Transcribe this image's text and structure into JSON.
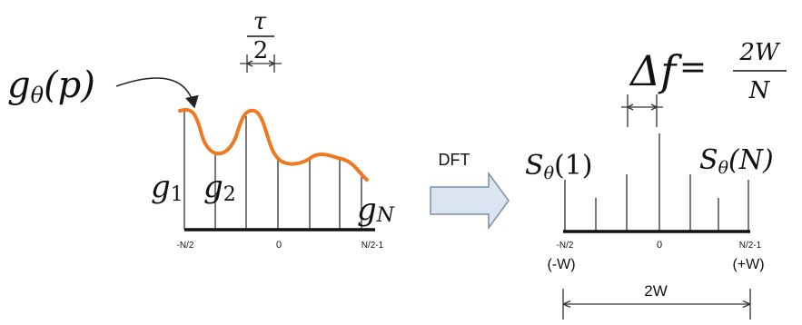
{
  "left_panel": {
    "function_label_main": "g",
    "function_label_sub": "θ",
    "function_label_arg": "(p)",
    "sample_first_main": "g",
    "sample_first_sub": "1",
    "sample_second_main": "g",
    "sample_second_sub": "2",
    "sample_last_main": "g",
    "sample_last_sub": "N",
    "spacing_numerator": "τ",
    "spacing_denominator": "2",
    "axis_left": "-N/2",
    "axis_zero": "0",
    "axis_right": "N/2-1",
    "curve_color": "#f07820"
  },
  "arrow": {
    "label": "DFT",
    "fill_color": "#dbe5f1",
    "stroke_color": "#7d8ea8"
  },
  "right_panel": {
    "delta_label": "Δf",
    "equals": "=",
    "delta_numerator": "2W",
    "delta_denominator": "N",
    "spectrum_first_main": "S",
    "spectrum_first_sub": "θ",
    "spectrum_first_arg": "(1)",
    "spectrum_last_main": "S",
    "spectrum_last_sub": "θ",
    "spectrum_last_arg": "(N)",
    "axis_left": "-N/2",
    "axis_zero": "0",
    "axis_right": "N/2-1",
    "bound_left": "(-W)",
    "bound_right": "(+W)",
    "bandwidth": "2W"
  }
}
